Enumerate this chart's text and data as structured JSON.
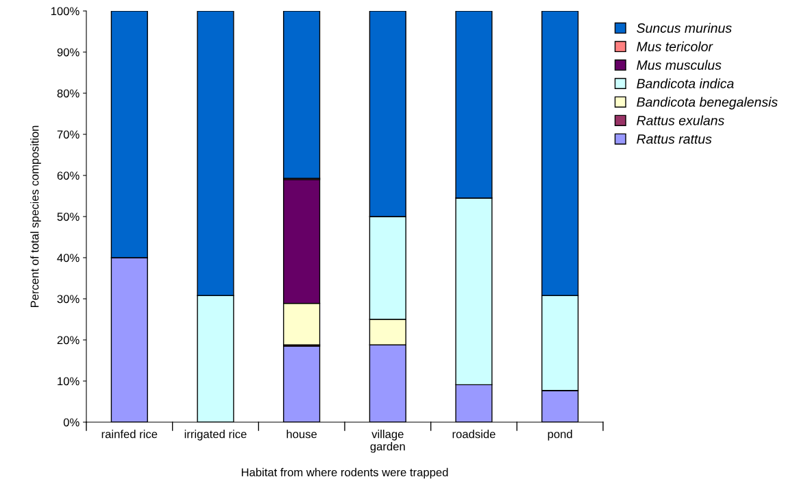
{
  "chart_data": {
    "type": "bar",
    "stacked": true,
    "xlabel": "Habitat from where rodents were trapped",
    "ylabel": "Percent of total species composition",
    "categories": [
      "rainfed rice",
      "irrigated rice",
      "house",
      "village\ngarden",
      "roadside",
      "pond"
    ],
    "series": [
      {
        "name": "Rattus rattus",
        "color": "#9999ff",
        "values": [
          40,
          0,
          18.5,
          18.8,
          9.1,
          7.7
        ]
      },
      {
        "name": "Rattus exulans",
        "color": "#993366",
        "values": [
          0,
          0,
          0.3,
          0,
          0,
          0
        ]
      },
      {
        "name": "Bandicota benegalensis",
        "color": "#ffffcc",
        "values": [
          0,
          0,
          10.1,
          6.2,
          0,
          0
        ]
      },
      {
        "name": "Bandicota indica",
        "color": "#ccffff",
        "values": [
          0,
          30.8,
          0,
          25,
          45.4,
          23.1
        ]
      },
      {
        "name": "Mus musculus",
        "color": "#660066",
        "values": [
          0,
          0,
          30.1,
          0,
          0,
          0
        ]
      },
      {
        "name": "Mus tericolor",
        "color": "#ff8080",
        "values": [
          0,
          0,
          0.3,
          0,
          0,
          0
        ]
      },
      {
        "name": "Suncus murinus",
        "color": "#0066cc",
        "values": [
          60,
          69.2,
          40.7,
          50,
          45.5,
          69.2
        ]
      }
    ],
    "ylim": [
      0,
      100
    ],
    "yticks": [
      {
        "value": 0,
        "label": "0%"
      },
      {
        "value": 10,
        "label": "10%"
      },
      {
        "value": 20,
        "label": "20%"
      },
      {
        "value": 30,
        "label": "30%"
      },
      {
        "value": 40,
        "label": "40%"
      },
      {
        "value": 50,
        "label": "50%"
      },
      {
        "value": 60,
        "label": "60%"
      },
      {
        "value": 70,
        "label": "70%"
      },
      {
        "value": 80,
        "label": "80%"
      },
      {
        "value": 90,
        "label": "90%"
      },
      {
        "value": 100,
        "label": "100%"
      }
    ],
    "legend": "right",
    "grid": false
  }
}
